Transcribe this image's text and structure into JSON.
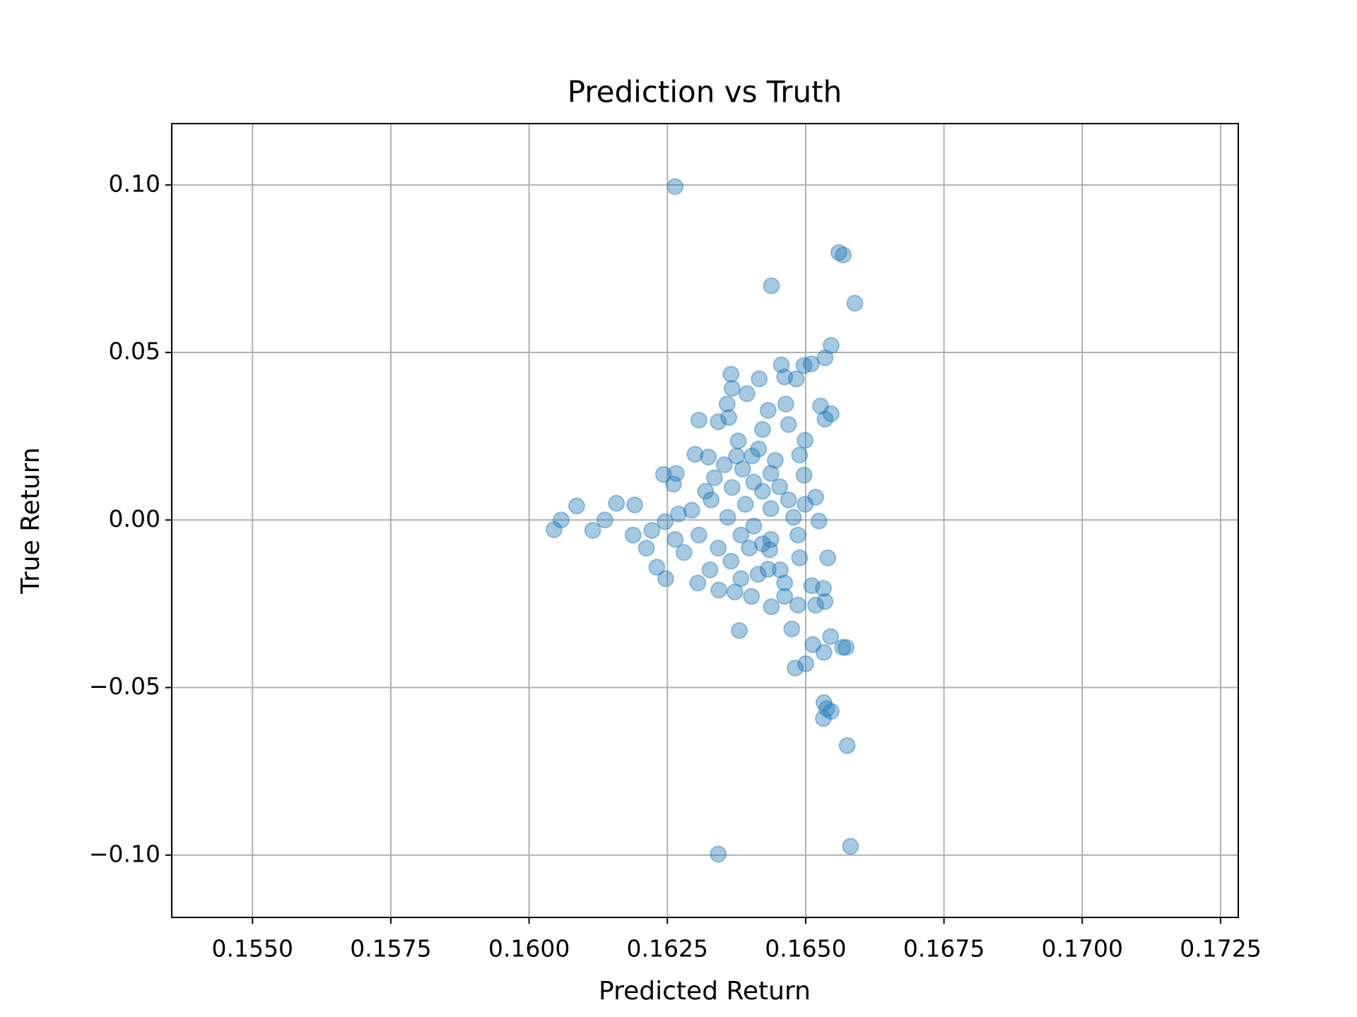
{
  "chart_data": {
    "type": "scatter",
    "title": "Prediction vs Truth",
    "x_label": "Predicted Return",
    "y_label": "True Return",
    "color": "#1f77b4",
    "grid": true,
    "xlim": [
      0.15354,
      0.17282
    ],
    "ylim": [
      -0.1186,
      0.1183
    ],
    "xticks": [
      {
        "value": 0.155,
        "label": "0.1550"
      },
      {
        "value": 0.1575,
        "label": "0.1575"
      },
      {
        "value": 0.16,
        "label": "0.1600"
      },
      {
        "value": 0.1625,
        "label": "0.1625"
      },
      {
        "value": 0.165,
        "label": "0.1650"
      },
      {
        "value": 0.1675,
        "label": "0.1675"
      },
      {
        "value": 0.17,
        "label": "0.1700"
      },
      {
        "value": 0.1725,
        "label": "0.1725"
      }
    ],
    "yticks": [
      {
        "value": -0.1,
        "label": "−0.10"
      },
      {
        "value": -0.05,
        "label": "−0.05"
      },
      {
        "value": 0,
        "label": "0.00"
      },
      0.05,
      {
        "value": 0.1,
        "label": "0.10"
      }
    ],
    "x": [
      0.16264,
      0.1656,
      0.16568,
      0.16438,
      0.16589,
      0.16546,
      0.16535,
      0.1651,
      0.16497,
      0.16456,
      0.16365,
      0.16416,
      0.16483,
      0.16462,
      0.16367,
      0.16394,
      0.16358,
      0.16527,
      0.16546,
      0.16535,
      0.16307,
      0.16342,
      0.16361,
      0.163,
      0.16324,
      0.16353,
      0.16266,
      0.16243,
      0.16261,
      0.16086,
      0.16158,
      0.16191,
      0.16137,
      0.16058,
      0.16045,
      0.16115,
      0.16188,
      0.16212,
      0.16231,
      0.16247,
      0.16305,
      0.16524,
      0.1654,
      0.1638,
      0.16481,
      0.165,
      0.16533,
      0.16513,
      0.16567,
      0.16573,
      0.16545,
      0.16475,
      0.16533,
      0.16538,
      0.16546,
      0.16532,
      0.16575,
      0.16581,
      0.16342,
      0.16535,
      0.16518,
      0.16511,
      0.16532,
      0.16438,
      0.16402,
      0.16343,
      0.16372,
      0.16432,
      0.16435,
      0.16489,
      0.16486,
      0.16499,
      0.16518,
      0.16497,
      0.16499,
      0.16489,
      0.16469,
      0.16464,
      0.16432,
      0.16422,
      0.16415,
      0.16378,
      0.16403,
      0.16386,
      0.16367,
      0.16329,
      0.16294,
      0.1627,
      0.16246,
      0.16222,
      0.16307,
      0.16342,
      0.16365,
      0.16398,
      0.16437,
      0.16406,
      0.16437,
      0.16469,
      0.16391,
      0.16359,
      0.16422,
      0.16437,
      0.16445,
      0.16406,
      0.16453,
      0.16478,
      0.16454,
      0.16462,
      0.16414,
      0.16383,
      0.16327,
      0.1628,
      0.16264,
      0.16335,
      0.16319,
      0.16375,
      0.16462,
      0.16486,
      0.16422,
      0.16383
    ],
    "values": [
      0.0995,
      0.0798,
      0.0791,
      0.0699,
      0.0647,
      0.0521,
      0.0484,
      0.0466,
      0.0461,
      0.0463,
      0.0435,
      0.0421,
      0.0421,
      0.0427,
      0.0393,
      0.0377,
      0.0346,
      0.034,
      0.0317,
      0.0301,
      0.0298,
      0.0293,
      0.0306,
      0.0196,
      0.0188,
      0.0165,
      0.0139,
      0.0136,
      0.0107,
      0.0042,
      0.005,
      0.0045,
      0,
      0,
      -0.0029,
      -0.0031,
      -0.0045,
      -0.0084,
      -0.0141,
      -0.0175,
      -0.0188,
      -0.0003,
      -0.0113,
      -0.033,
      -0.0442,
      -0.0429,
      -0.0395,
      -0.0372,
      -0.038,
      -0.038,
      -0.0348,
      -0.0325,
      -0.0545,
      -0.0563,
      -0.0571,
      -0.0592,
      -0.0673,
      -0.0974,
      -0.0997,
      -0.0243,
      -0.0254,
      -0.0196,
      -0.0204,
      -0.0259,
      -0.0228,
      -0.0209,
      -0.0215,
      -0.0147,
      -0.0089,
      -0.0113,
      -0.0045,
      0.0047,
      0.0068,
      0.0134,
      0.0238,
      0.0194,
      0.0285,
      0.0346,
      0.0327,
      0.027,
      0.0212,
      0.0236,
      0.0191,
      0.0152,
      0.0097,
      0.006,
      0.0029,
      0.0018,
      -0.0005,
      -0.0031,
      -0.0045,
      -0.0084,
      -0.0123,
      -0.0084,
      -0.0058,
      -0.0018,
      0.0034,
      0.006,
      0.0047,
      0.0008,
      0.0086,
      0.0139,
      0.0178,
      0.0113,
      0.0099,
      0.0008,
      -0.0149,
      -0.0188,
      -0.0162,
      -0.0175,
      -0.0149,
      -0.0097,
      -0.0058,
      0.0126,
      0.0086,
      0.0191,
      -0.0228,
      -0.0254,
      -0.0071,
      -0.0045
    ]
  }
}
